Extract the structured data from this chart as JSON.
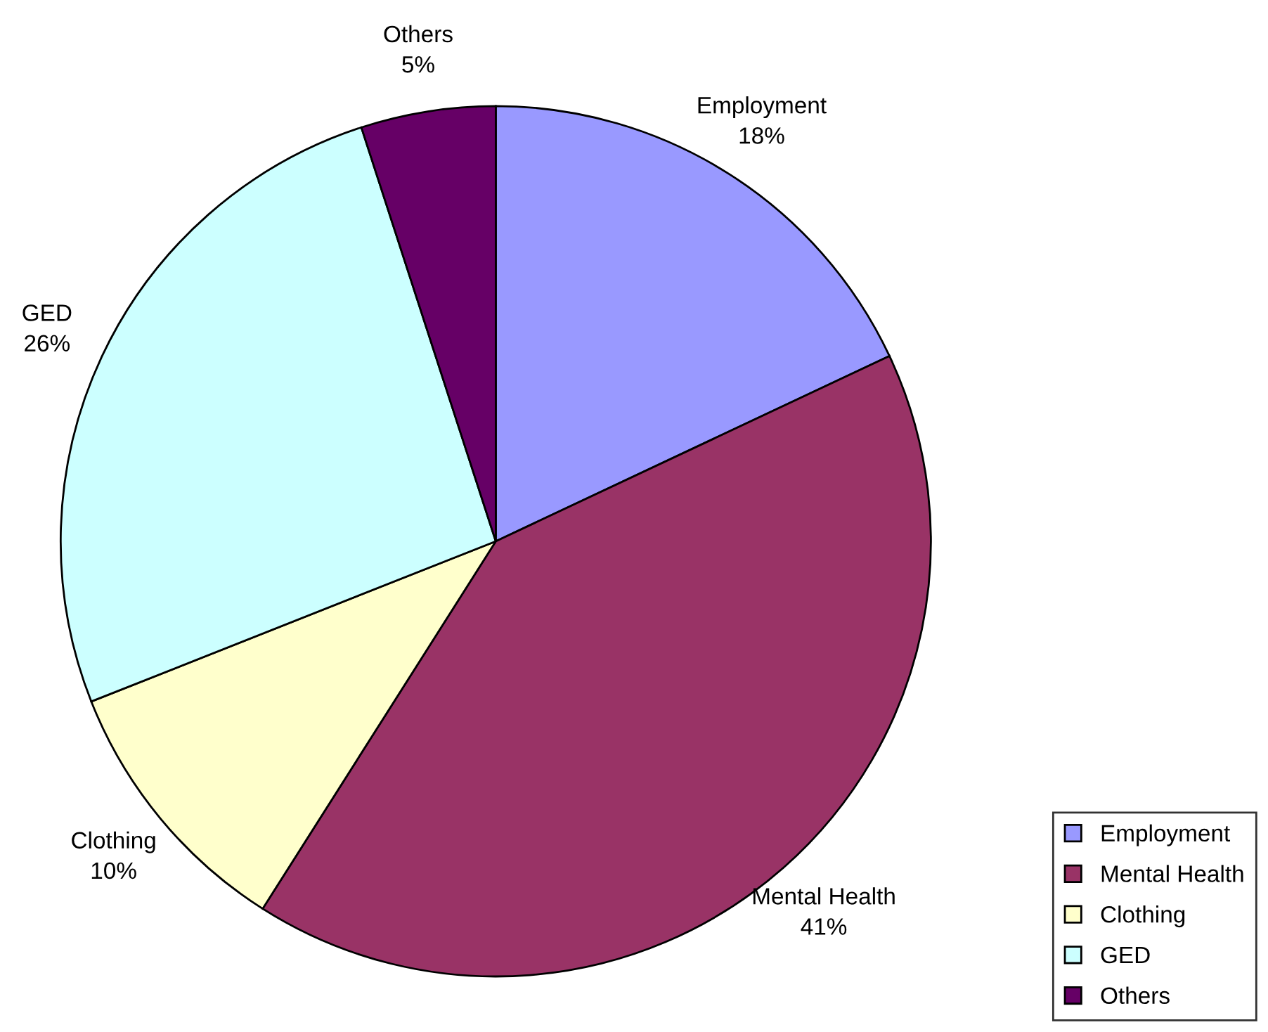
{
  "chart_data": {
    "type": "pie",
    "categories": [
      "Employment",
      "Mental Health",
      "Clothing",
      "GED",
      "Others"
    ],
    "values": [
      18,
      41,
      10,
      26,
      5
    ],
    "value_labels": [
      "18%",
      "41%",
      "10%",
      "26%",
      "5%"
    ],
    "colors": [
      "#9999ff",
      "#993366",
      "#ffffcc",
      "#ccffff",
      "#660066"
    ],
    "legend": "bottom right"
  }
}
